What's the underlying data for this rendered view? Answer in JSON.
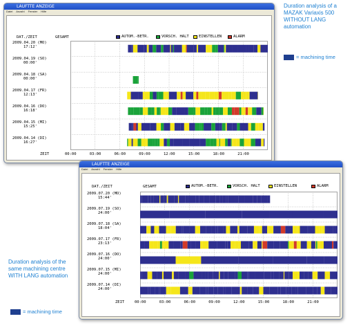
{
  "colors": {
    "auto": "#2e2f8f",
    "vorsch": "#1aa33a",
    "einst": "#f5e61a",
    "alarm": "#d23a2a",
    "caption": "#1c7fd1"
  },
  "captions": {
    "top": "Duration analysis of a MAZAK Variaxis 500 WITHOUT LANG automation",
    "top_mtime": "= machining time",
    "bottom": "Duration analysis of the same machining centre WITH LANG automation",
    "bottom_mtime": "= machining time"
  },
  "window1": {
    "title": "LAUFTTE ANZEIGE",
    "menu": [
      "Datei",
      "Anzahl",
      "Fenster",
      "Hilfe"
    ],
    "header_datetime": "DAT./ZEIT",
    "header_total": "GESAMT",
    "legend": [
      {
        "key": "auto",
        "label": "AUTOM.-BETR."
      },
      {
        "key": "vorsch",
        "label": "VORSCH. HALT"
      },
      {
        "key": "einst",
        "label": "EINSTELLEN"
      },
      {
        "key": "alarm",
        "label": "ALARM"
      }
    ],
    "rows": [
      {
        "date": "2009.04.20 (MO)",
        "time": "17:12'"
      },
      {
        "date": "2009.04.19 (SO)",
        "time": "00:00'"
      },
      {
        "date": "2009.04.18 (SA)",
        "time": "00:00'"
      },
      {
        "date": "2009.04.17 (FR)",
        "time": "12:13'"
      },
      {
        "date": "2009.04.16 (DO)",
        "time": "16:18'"
      },
      {
        "date": "2009.04.15 (MI)",
        "time": "15:25'"
      },
      {
        "date": "2009.04.14 (DI)",
        "time": "16:27'"
      }
    ],
    "axis_label": "ZEIT",
    "ticks": [
      "00:00",
      "03:00",
      "06:00",
      "09:00",
      "12:00",
      "15:00",
      "18:00",
      "21:00"
    ]
  },
  "window2": {
    "title": "LAUFTTE ANZEIGE",
    "menu": [
      "Datei",
      "Anzahl",
      "Fenster",
      "Hilfe"
    ],
    "header_datetime": "DAT./ZEIT",
    "header_total": "GESAMT",
    "legend": [
      {
        "key": "auto",
        "label": "AUTOM.-BETR."
      },
      {
        "key": "vorsch",
        "label": "VORSCH. HALT"
      },
      {
        "key": "einst",
        "label": "EINSTELLEN"
      },
      {
        "key": "alarm",
        "label": "ALARM"
      }
    ],
    "rows": [
      {
        "date": "2009.07.20 (MO)",
        "time": "15:44'"
      },
      {
        "date": "2009.07.19 (SO)",
        "time": "24:00'"
      },
      {
        "date": "2009.07.18 (SA)",
        "time": "18:04'"
      },
      {
        "date": "2009.07.17 (FR)",
        "time": "23:13'"
      },
      {
        "date": "2009.07.16 (DO)",
        "time": "24:00'"
      },
      {
        "date": "2009.07.15 (MI)",
        "time": "24:00'"
      },
      {
        "date": "2009.07.14 (DI)",
        "time": "24:00'"
      }
    ],
    "axis_label": "ZEIT",
    "ticks": [
      "00:00",
      "03:00",
      "06:00",
      "09:00",
      "12:00",
      "15:00",
      "18:00",
      "21:00"
    ]
  },
  "chart_data": [
    {
      "type": "bar",
      "title": "LAUFTTE ANZEIGE",
      "xlabel": "ZEIT",
      "xlim": [
        0,
        24
      ],
      "categories": [
        "2009.04.20 (MO)",
        "2009.04.19 (SO)",
        "2009.04.18 (SA)",
        "2009.04.17 (FR)",
        "2009.04.16 (DO)",
        "2009.04.15 (MI)",
        "2009.04.14 (DI)"
      ],
      "rows": [
        {
          "start": 7.0,
          "end": 24.0,
          "pattern": "mixed"
        },
        {
          "start": 0,
          "end": 0,
          "pattern": "none"
        },
        {
          "start": 7.6,
          "end": 8.3,
          "pattern": "short"
        },
        {
          "start": 6.9,
          "end": 22.8,
          "pattern": "yellow-heavy"
        },
        {
          "start": 7.0,
          "end": 23.5,
          "pattern": "green-heavy"
        },
        {
          "start": 7.1,
          "end": 23.6,
          "pattern": "mixed"
        },
        {
          "start": 6.9,
          "end": 23.6,
          "pattern": "green-heavy"
        }
      ]
    },
    {
      "type": "bar",
      "title": "LAUFTTE ANZEIGE",
      "xlabel": "ZEIT",
      "xlim": [
        0,
        24
      ],
      "categories": [
        "2009.07.20 (MO)",
        "2009.07.19 (SO)",
        "2009.07.18 (SA)",
        "2009.07.17 (FR)",
        "2009.07.16 (DO)",
        "2009.07.15 (MI)",
        "2009.07.14 (DI)"
      ],
      "rows": [
        {
          "start": 0,
          "end": 15.8,
          "pattern": "mostly-auto"
        },
        {
          "start": 0,
          "end": 24.0,
          "pattern": "all-auto"
        },
        {
          "start": 0,
          "end": 24.0,
          "pattern": "auto-yellow"
        },
        {
          "start": 0,
          "end": 24.0,
          "pattern": "dense-mixed"
        },
        {
          "start": 0,
          "end": 24.0,
          "pattern": "all-auto-tick"
        },
        {
          "start": 0,
          "end": 24.0,
          "pattern": "auto-yellow2"
        },
        {
          "start": 0,
          "end": 24.0,
          "pattern": "all-auto-yellow-end"
        }
      ]
    }
  ]
}
